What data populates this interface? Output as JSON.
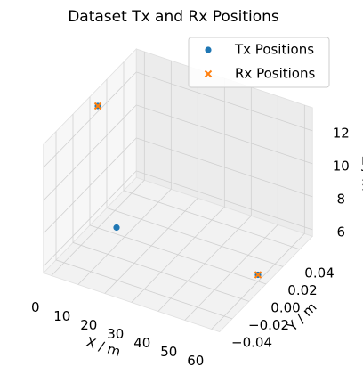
{
  "chart_data": {
    "type": "scatter3d",
    "title": "Dataset Tx and Rx Positions",
    "xlabel": "X / m",
    "ylabel": "Y / m",
    "zlabel": "Z / m",
    "xlim": [
      -3,
      63
    ],
    "ylim": [
      -0.055,
      0.055
    ],
    "zlim": [
      5.6,
      13.4
    ],
    "xticks": [
      0,
      10,
      20,
      30,
      40,
      50,
      60
    ],
    "yticks": [
      {
        "value": -0.04,
        "label": "−0.04"
      },
      {
        "value": -0.02,
        "label": "−0.02"
      },
      {
        "value": 0,
        "label": "0.00"
      },
      0.02,
      0.04
    ],
    "zticks": [
      6,
      8,
      10,
      12
    ],
    "grid": true,
    "legend": "upper right",
    "series": [
      {
        "name": "Tx Positions",
        "color": "#1f77b4",
        "marker": "o",
        "x": [
          0,
          60,
          7
        ],
        "y": [
          0,
          0,
          0
        ],
        "z": [
          13,
          6,
          6
        ]
      },
      {
        "name": "Rx Positions",
        "color": "#ff7f0e",
        "marker": "x",
        "x": [
          0,
          60
        ],
        "y": [
          0,
          0
        ],
        "z": [
          13,
          6
        ]
      }
    ]
  }
}
